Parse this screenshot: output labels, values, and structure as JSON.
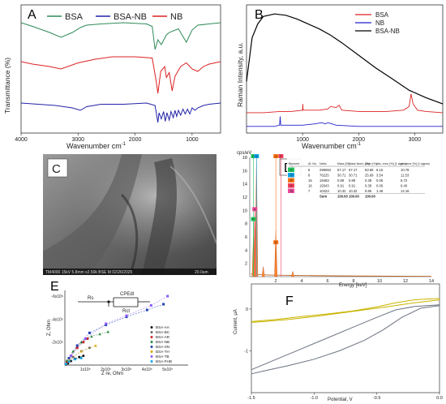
{
  "chart_data": [
    {
      "panel": "A",
      "type": "line",
      "xlabel": "Wavenumber cm",
      "xlabel_sup": "-1",
      "ylabel": "Transmittance (%)",
      "xlim": [
        4000,
        500
      ],
      "xticks": [
        4000,
        3000,
        2000,
        1000
      ],
      "legend": [
        "BSA",
        "BSA-NB",
        "NB"
      ],
      "series": [
        {
          "name": "BSA",
          "color": "#2e8b57",
          "x": [
            4000,
            3800,
            3500,
            3300,
            3100,
            2960,
            2850,
            2600,
            2200,
            1800,
            1700,
            1650,
            1600,
            1540,
            1450,
            1400,
            1240,
            1100,
            1000,
            900,
            700,
            500
          ],
          "y": [
            88,
            85,
            80,
            76,
            80,
            84,
            86,
            87,
            88,
            87,
            85,
            66,
            74,
            70,
            78,
            80,
            83,
            72,
            82,
            86,
            87,
            88
          ]
        },
        {
          "name": "NB",
          "color": "#dd2222",
          "x": [
            4000,
            3800,
            3500,
            3300,
            3000,
            2900,
            2700,
            2400,
            2000,
            1700,
            1630,
            1600,
            1550,
            1480,
            1450,
            1400,
            1350,
            1300,
            1200,
            1100,
            1000,
            900,
            800,
            700,
            500
          ],
          "y": [
            56,
            54,
            52,
            50,
            55,
            56,
            58,
            60,
            60,
            59,
            40,
            30,
            48,
            52,
            43,
            47,
            32,
            44,
            52,
            55,
            50,
            48,
            52,
            54,
            56
          ]
        },
        {
          "name": "BSA-NB",
          "color": "#2222aa",
          "x": [
            4000,
            3700,
            3400,
            3100,
            2960,
            2850,
            2600,
            2200,
            1800,
            1650,
            1600,
            1580,
            1540,
            1500,
            1470,
            1440,
            1400,
            1370,
            1330,
            1300,
            1270,
            1240,
            1200,
            1160,
            1120,
            1080,
            1040,
            1000,
            950,
            900,
            800,
            700,
            500
          ],
          "y": [
            22,
            21,
            20,
            18,
            16,
            19,
            21,
            21,
            22,
            20,
            6,
            14,
            9,
            15,
            7,
            14,
            8,
            15,
            10,
            16,
            11,
            16,
            12,
            17,
            13,
            17,
            13,
            18,
            16,
            18,
            20,
            21,
            22
          ]
        }
      ]
    },
    {
      "panel": "B",
      "type": "line",
      "xlabel": "Wavenumber cm",
      "xlabel_sup": "-1",
      "ylabel": "Raman Intensity, a.u.",
      "xlim": [
        0,
        3500
      ],
      "xticks": [
        1000,
        2000,
        3000
      ],
      "legend": [
        "BSA",
        "NB",
        "BSA-NB"
      ],
      "series": [
        {
          "name": "BSA-NB",
          "color": "#000000",
          "x": [
            0,
            100,
            200,
            300,
            500,
            700,
            900,
            1100,
            1300,
            1500,
            1700,
            2000,
            2300,
            2600,
            2900,
            3200,
            3500
          ],
          "y": [
            40,
            75,
            86,
            92,
            94,
            93,
            90,
            86,
            82,
            77,
            71,
            61,
            51,
            42,
            33,
            27,
            22
          ]
        },
        {
          "name": "BSA",
          "color": "#dd2222",
          "x": [
            0,
            300,
            600,
            800,
            1000,
            1003,
            1010,
            1300,
            1450,
            1500,
            1600,
            1650,
            1700,
            2000,
            2500,
            2800,
            2900,
            2935,
            2970,
            3050,
            3200,
            3500
          ],
          "y": [
            15,
            15,
            16,
            16,
            17,
            22,
            17,
            17,
            18,
            20,
            19,
            21,
            17,
            16,
            16,
            17,
            20,
            30,
            22,
            17,
            16,
            15
          ]
        },
        {
          "name": "NB",
          "color": "#2222cc",
          "x": [
            0,
            300,
            500,
            590,
            600,
            610,
            800,
            1000,
            1200,
            1350,
            1400,
            1450,
            1600,
            2000,
            2500,
            3000,
            3500
          ],
          "y": [
            4,
            4,
            4,
            5,
            12,
            5,
            5,
            5,
            6,
            7,
            6,
            7,
            5,
            4,
            4,
            4,
            4
          ]
        }
      ]
    },
    {
      "panel": "D",
      "type": "bar",
      "title": "cps/eV",
      "xlabel": "Energy [keV]",
      "xlim": [
        0,
        14
      ],
      "ylim": [
        0,
        18
      ],
      "xticks": [
        2,
        4,
        6,
        8,
        10,
        12,
        14
      ],
      "yticks": [
        2,
        4,
        6,
        8,
        10,
        12,
        14,
        16,
        18
      ],
      "peaks": [
        {
          "label": "C",
          "x": 0.28,
          "y": 6
        },
        {
          "label": "N",
          "x": 0.39,
          "y": 10
        },
        {
          "label": "O",
          "x": 0.52,
          "y": 18
        },
        {
          "label": "Na",
          "x": 1.04,
          "y": 1.5
        },
        {
          "label": "P",
          "x": 2.01,
          "y": 7
        },
        {
          "label": "K",
          "x": 3.31,
          "y": 0.8
        }
      ],
      "peak_labels": [
        "C",
        "N",
        "O",
        "P",
        "K",
        "P",
        "K"
      ],
      "table": {
        "header": [
          "Element",
          "At. No.",
          "Netto",
          "Mass [%]",
          "Mass Norm. [%]",
          "Atom [%]",
          "abs. error [%] (1 sigma)",
          "rel. error [%] (1 sigma)"
        ],
        "rows": [
          [
            "C",
            "6",
            "299084",
            "57.17",
            "57.17",
            "63.69",
            "6.16",
            "10.78"
          ],
          [
            "O",
            "8",
            "76225",
            "30.71",
            "30.71",
            "25.69",
            "3.54",
            "11.53"
          ],
          [
            "P",
            "15",
            "19483",
            "0.89",
            "0.89",
            "0.38",
            "0.06",
            "6.72"
          ],
          [
            "K",
            "16",
            "19343",
            "0.91",
            "0.91",
            "0.38",
            "0.06",
            "6.40"
          ],
          [
            "N",
            "7",
            "10423",
            "10.32",
            "10.32",
            "9.86",
            "1.46",
            "14.16"
          ]
        ],
        "sum": [
          "Sum",
          "100.00",
          "100.00",
          "100.00"
        ]
      }
    },
    {
      "panel": "E",
      "type": "scatter",
      "xlabel": "Z re, Ohm",
      "ylabel": "Z, Ohm",
      "xticks": [
        "1x10⁵",
        "2x10⁵",
        "3x10⁵",
        "4x10⁵",
        "5x10⁵"
      ],
      "yticks": [
        "-6x10⁵",
        "-4x10⁵",
        "-2x10⁵"
      ],
      "circuit": [
        "Rs",
        "CPEdl",
        "Rct"
      ],
      "series": [
        {
          "name": "BSA-AA",
          "color": "#111111",
          "x": [
            5000,
            15000,
            30000,
            50000,
            70000,
            90000
          ],
          "y": [
            5000,
            15000,
            35000,
            55000,
            70000,
            80000
          ]
        },
        {
          "name": "BSA-BC",
          "color": "#666666",
          "x": [
            10000,
            40000,
            80000,
            120000
          ],
          "y": [
            20000,
            70000,
            120000,
            150000
          ]
        },
        {
          "name": "BSA-AR",
          "color": "#cc2222",
          "x": [
            10000,
            30000,
            60000,
            90000,
            110000
          ],
          "y": [
            30000,
            80000,
            150000,
            200000,
            230000
          ]
        },
        {
          "name": "BSA-NB",
          "color": "#2b8a3e",
          "x": [
            10000,
            40000,
            80000,
            130000,
            170000,
            210000
          ],
          "y": [
            40000,
            120000,
            200000,
            250000,
            270000,
            290000
          ]
        },
        {
          "name": "BSA-SN",
          "color": "#1e40af",
          "x": [
            20000,
            60000,
            120000,
            200000,
            300000,
            400000,
            480000
          ],
          "y": [
            60000,
            170000,
            280000,
            350000,
            420000,
            480000,
            530000
          ]
        },
        {
          "name": "BSA-TH",
          "color": "#d9a400",
          "x": [
            20000,
            80000,
            150000
          ],
          "y": [
            40000,
            120000,
            170000
          ]
        },
        {
          "name": "BSA-TB",
          "color": "#8b5cf6",
          "x": [
            30000,
            100000,
            200000,
            300000,
            420000,
            500000
          ],
          "y": [
            80000,
            230000,
            360000,
            430000,
            520000,
            600000
          ]
        },
        {
          "name": "BSA-FHB",
          "color": "#0ea5e9",
          "x": [
            5000,
            20000,
            50000,
            80000
          ],
          "y": [
            10000,
            30000,
            50000,
            60000
          ]
        }
      ]
    },
    {
      "panel": "F",
      "type": "line",
      "xlabel": "Potential, V",
      "ylabel": "Current, μA",
      "xlim": [
        -1.5,
        0.0
      ],
      "ylim": [
        -2,
        0.6
      ],
      "xticks": [
        -1.5,
        -1.0,
        -0.5,
        0.0
      ],
      "yticks": [
        0,
        -1
      ],
      "series": [
        {
          "color": "#c9b400",
          "x": [
            -1.5,
            -1.3,
            -1.1,
            -0.9,
            -0.7,
            -0.5,
            -0.35,
            -0.2,
            -0.1,
            0.0
          ],
          "y": [
            -0.3,
            -0.25,
            -0.18,
            -0.12,
            -0.05,
            0.05,
            0.15,
            0.22,
            0.24,
            0.25
          ]
        },
        {
          "color": "#c9b400",
          "x": [
            0.0,
            -0.2,
            -0.4,
            -0.6,
            -0.8,
            -1.0,
            -1.2,
            -1.4,
            -1.5
          ],
          "y": [
            0.22,
            0.15,
            0.06,
            -0.02,
            -0.1,
            -0.18,
            -0.25,
            -0.3,
            -0.32
          ]
        },
        {
          "color": "#6b7280",
          "x": [
            -1.5,
            -1.3,
            -1.1,
            -0.9,
            -0.7,
            -0.5,
            -0.35,
            -0.2,
            -0.1,
            0.0
          ],
          "y": [
            -1.45,
            -1.2,
            -0.95,
            -0.7,
            -0.45,
            -0.2,
            -0.02,
            0.06,
            0.08,
            0.1
          ]
        },
        {
          "color": "#6b7280",
          "x": [
            0.0,
            -0.15,
            -0.3,
            -0.45,
            -0.6,
            -0.8,
            -1.0,
            -1.2,
            -1.4,
            -1.5
          ],
          "y": [
            0.08,
            0.02,
            -0.2,
            -0.5,
            -0.75,
            -1.0,
            -1.2,
            -1.35,
            -1.48,
            -1.55
          ]
        }
      ]
    }
  ],
  "panels": {
    "a": "A",
    "b": "B",
    "c": "C",
    "d": "D",
    "e": "E",
    "f": "F"
  },
  "sem": {
    "caption": "TM4000 15kV 5.8mm x2.50k BSE M 02/26/2025",
    "scale": "20.0um"
  }
}
